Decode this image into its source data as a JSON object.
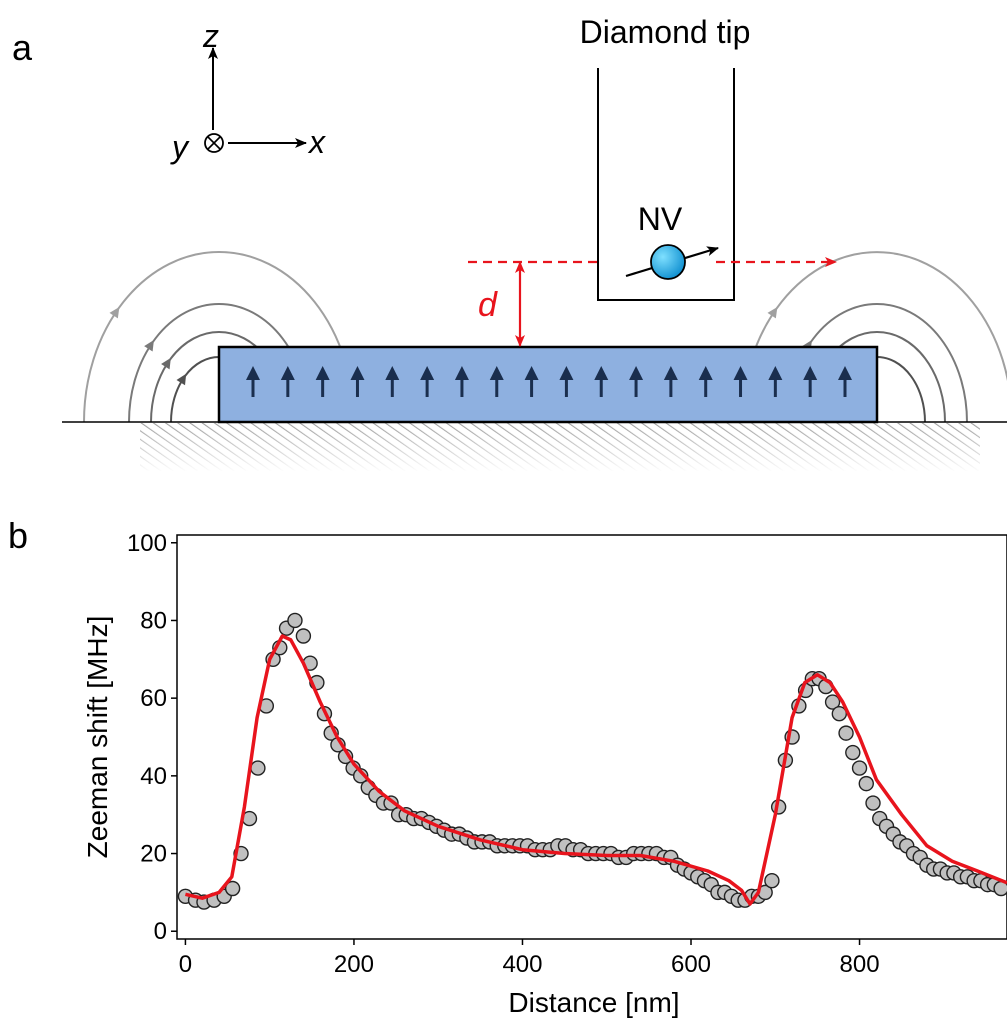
{
  "panel_a": {
    "label": "a",
    "tip_label": "Diamond tip",
    "nv_label": "NV",
    "distance_label": "d",
    "axes": {
      "z": "z",
      "x": "x",
      "y": "y"
    },
    "magnetization_arrow_count": 18,
    "colors": {
      "film_fill": "#8eb0e0",
      "arrow": "#1a2e4e",
      "scan_line": "#e8141d",
      "nv_sphere": "#1aa6e0"
    }
  },
  "panel_b": {
    "label": "b"
  },
  "chart_data": {
    "type": "scatter",
    "xlabel": "Distance [nm]",
    "ylabel": "Zeeman shift [MHz]",
    "xlim": [
      -10,
      975
    ],
    "ylim": [
      -2,
      102
    ],
    "xticks": [
      0,
      200,
      400,
      600,
      800
    ],
    "yticks": [
      0,
      20,
      40,
      60,
      80,
      100
    ],
    "grid": false,
    "series": [
      {
        "kind": "points",
        "color": "#c0c0c0",
        "x": [
          0,
          12,
          22,
          34,
          46,
          56,
          66,
          76,
          86,
          96,
          104,
          112,
          120,
          130,
          140,
          148,
          156,
          165,
          173,
          181,
          190,
          199,
          208,
          217,
          226,
          235,
          244,
          253,
          262,
          271,
          280,
          289,
          298,
          307,
          316,
          325,
          334,
          343,
          352,
          361,
          370,
          379,
          388,
          397,
          406,
          415,
          424,
          433,
          442,
          451,
          460,
          469,
          478,
          487,
          496,
          505,
          514,
          523,
          532,
          541,
          550,
          559,
          568,
          576,
          584,
          592,
          600,
          608,
          616,
          624,
          632,
          640,
          648,
          656,
          664,
          672,
          680,
          688,
          696,
          704,
          712,
          720,
          728,
          736,
          744,
          752,
          760,
          768,
          776,
          784,
          792,
          800,
          808,
          816,
          824,
          832,
          840,
          848,
          856,
          864,
          872,
          880,
          888,
          896,
          904,
          912,
          920,
          928,
          936,
          944,
          952,
          960,
          968
        ],
        "y": [
          9,
          8,
          7.5,
          8,
          9,
          11,
          20,
          29,
          42,
          58,
          70,
          73,
          78,
          80,
          76,
          69,
          64,
          56,
          51,
          48,
          45,
          42,
          40,
          37,
          35,
          33,
          33,
          30,
          30,
          29,
          29,
          28,
          27,
          26,
          25,
          25,
          24,
          23,
          23,
          23,
          22,
          22,
          22,
          22,
          22,
          21,
          21,
          21,
          22,
          22,
          21,
          21,
          20,
          20,
          20,
          20,
          19,
          19,
          20,
          20,
          20,
          20,
          19,
          19,
          17,
          16,
          15,
          14,
          13,
          12,
          10,
          10,
          9,
          8,
          8,
          9,
          9,
          10,
          13,
          32,
          44,
          50,
          58,
          62,
          65,
          65,
          63,
          59,
          56,
          51,
          46,
          42,
          38,
          33,
          29,
          27,
          25,
          23,
          22,
          20,
          19,
          17,
          16,
          16,
          15,
          15,
          14,
          14,
          13,
          13,
          12,
          12,
          11
        ]
      },
      {
        "kind": "line",
        "color": "#e8141d",
        "x": [
          0,
          20,
          40,
          55,
          70,
          85,
          100,
          115,
          125,
          140,
          160,
          180,
          200,
          230,
          260,
          300,
          350,
          400,
          450,
          500,
          540,
          580,
          620,
          645,
          660,
          670,
          680,
          700,
          720,
          735,
          750,
          765,
          780,
          800,
          820,
          850,
          880,
          910,
          940,
          975
        ],
        "y": [
          9.5,
          8.5,
          10,
          14,
          32,
          55,
          70,
          76,
          75,
          69,
          59,
          50,
          43,
          36,
          31,
          27,
          23.5,
          21,
          20,
          19.5,
          19.5,
          18,
          15.5,
          13,
          10.5,
          7,
          10,
          30,
          55,
          64,
          66,
          64,
          59,
          50,
          39,
          30,
          22,
          18,
          15.5,
          12.5
        ]
      }
    ]
  }
}
